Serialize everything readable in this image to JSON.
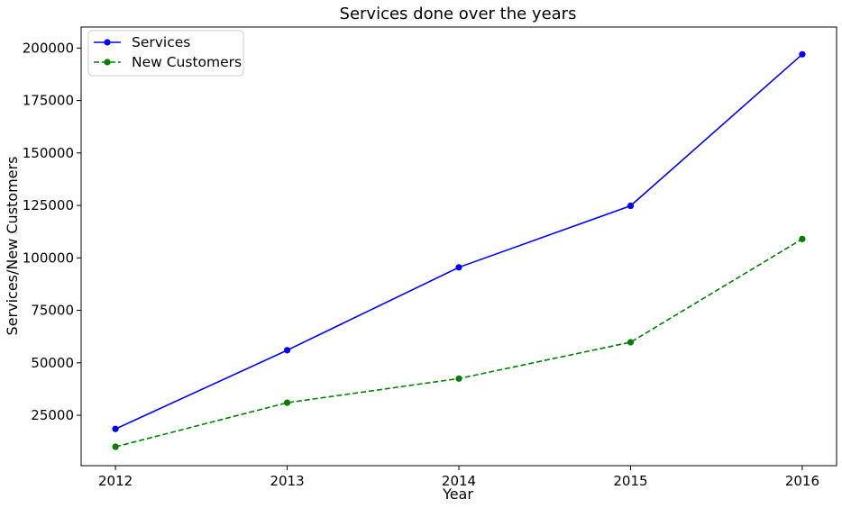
{
  "chart_data": {
    "type": "line",
    "title": "Services done over the years",
    "xlabel": "Year",
    "ylabel": "Services/New Customers",
    "x": [
      2012,
      2013,
      2014,
      2015,
      2016
    ],
    "x_tick_labels": [
      "2012",
      "2013",
      "2014",
      "2015",
      "2016"
    ],
    "y_ticks": [
      25000,
      50000,
      75000,
      100000,
      125000,
      150000,
      175000,
      200000
    ],
    "y_tick_labels": [
      "25000",
      "50000",
      "75000",
      "100000",
      "125000",
      "150000",
      "175000",
      "200000"
    ],
    "xlim": [
      2011.8,
      2016.2
    ],
    "ylim": [
      1000,
      210000
    ],
    "grid": false,
    "legend_position": "top-left",
    "series": [
      {
        "name": "Services",
        "values": [
          18500,
          56000,
          95500,
          124800,
          197000
        ],
        "color": "#0000ff",
        "line_style": "solid",
        "marker": "circle"
      },
      {
        "name": "New Customers",
        "values": [
          10000,
          31000,
          42500,
          59800,
          109000
        ],
        "color": "#008000",
        "line_style": "dashed",
        "marker": "circle"
      }
    ]
  }
}
